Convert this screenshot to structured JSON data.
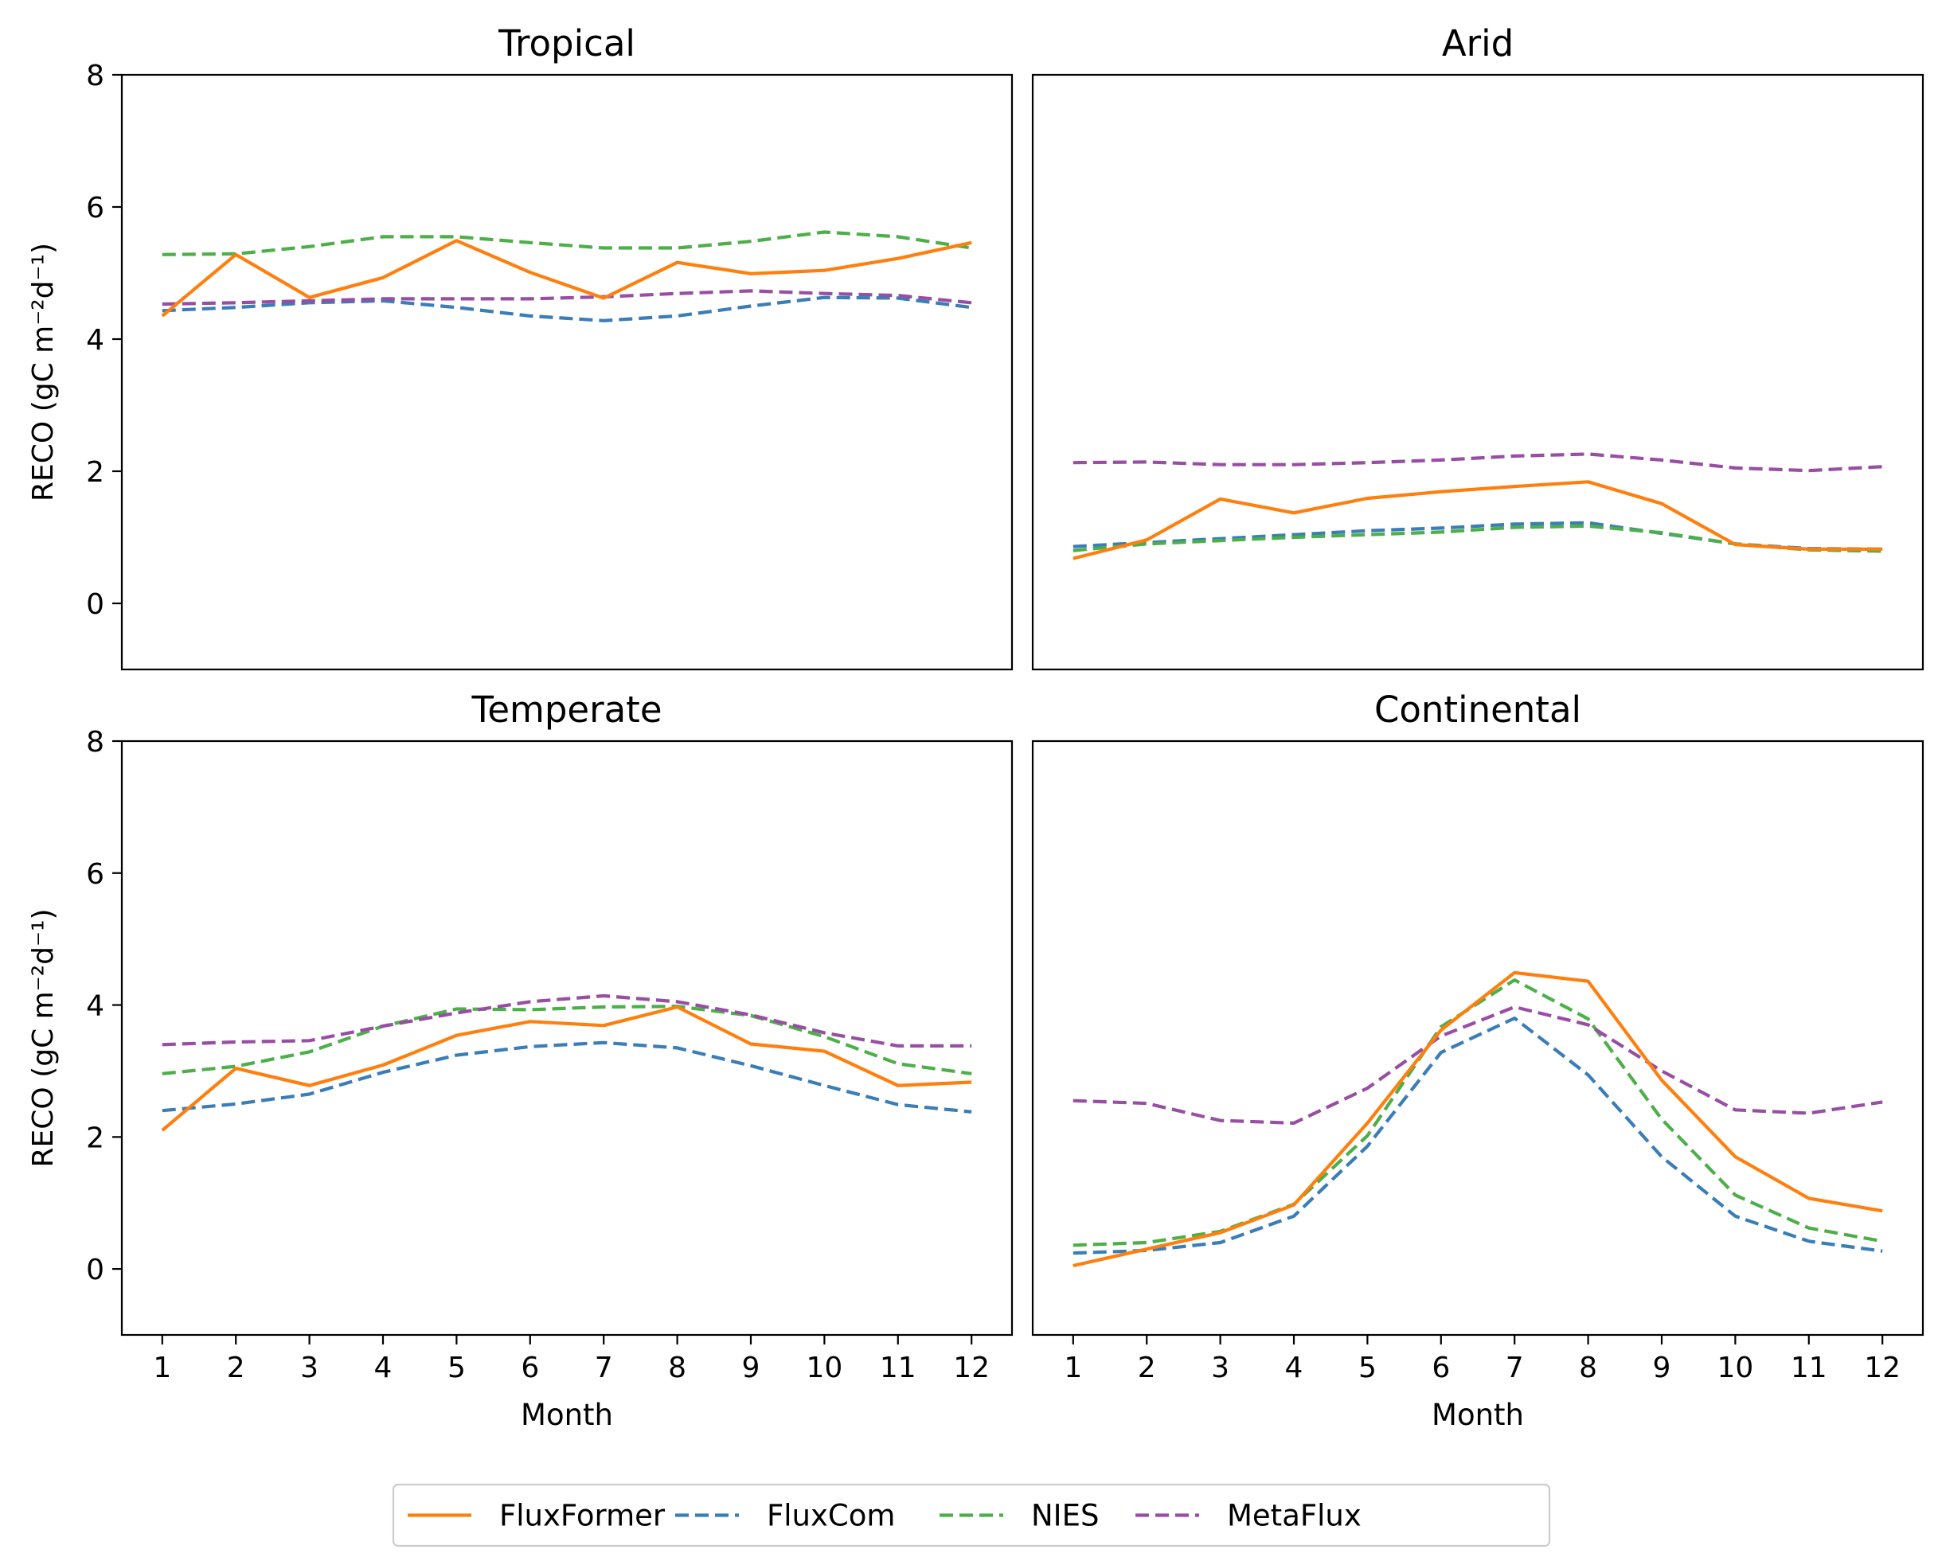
{
  "colors": {
    "FluxFormer": "#ff7f0e",
    "FluxCom": "#3a7db7",
    "NIES": "#4daf4a",
    "MetaFlux": "#984ea3"
  },
  "legend": {
    "placement": "bottom-center",
    "entries": [
      {
        "name": "FluxFormer",
        "style": "solid"
      },
      {
        "name": "FluxCom",
        "style": "dashed"
      },
      {
        "name": "NIES",
        "style": "dashed"
      },
      {
        "name": "MetaFlux",
        "style": "dashed"
      }
    ]
  },
  "chart_data": [
    {
      "type": "line",
      "title": "Tropical",
      "ylabel": "RECO (gC m⁻²d⁻¹)",
      "xlabel": "",
      "ylim": [
        -1,
        8
      ],
      "yticks": [
        "0",
        "2",
        "4",
        "6",
        "8"
      ],
      "xlim": [
        0.45,
        12.55
      ],
      "xticks": [],
      "grid": false,
      "x": [
        1,
        2,
        3,
        4,
        5,
        6,
        7,
        8,
        9,
        10,
        11,
        12
      ],
      "series": [
        {
          "name": "FluxFormer",
          "values": [
            4.35,
            5.28,
            4.63,
            4.93,
            5.49,
            5.01,
            4.62,
            5.16,
            4.99,
            5.04,
            5.22,
            5.46
          ]
        },
        {
          "name": "FluxCom",
          "values": [
            4.43,
            4.48,
            4.55,
            4.58,
            4.48,
            4.35,
            4.28,
            4.35,
            4.5,
            4.63,
            4.62,
            4.48
          ]
        },
        {
          "name": "NIES",
          "values": [
            5.28,
            5.29,
            5.4,
            5.55,
            5.55,
            5.46,
            5.38,
            5.38,
            5.48,
            5.62,
            5.55,
            5.38
          ]
        },
        {
          "name": "MetaFlux",
          "values": [
            4.53,
            4.55,
            4.58,
            4.61,
            4.61,
            4.61,
            4.64,
            4.69,
            4.73,
            4.69,
            4.66,
            4.55
          ]
        }
      ]
    },
    {
      "type": "line",
      "title": "Arid",
      "ylabel": "",
      "xlabel": "",
      "ylim": [
        -1,
        8
      ],
      "yticks": [],
      "xlim": [
        0.45,
        12.55
      ],
      "xticks": [],
      "grid": false,
      "x": [
        1,
        2,
        3,
        4,
        5,
        6,
        7,
        8,
        9,
        10,
        11,
        12
      ],
      "series": [
        {
          "name": "FluxFormer",
          "values": [
            0.68,
            0.96,
            1.58,
            1.37,
            1.59,
            1.69,
            1.77,
            1.84,
            1.51,
            0.89,
            0.82,
            0.82
          ]
        },
        {
          "name": "FluxCom",
          "values": [
            0.86,
            0.92,
            0.98,
            1.04,
            1.1,
            1.14,
            1.2,
            1.22,
            1.06,
            0.9,
            0.83,
            0.82
          ]
        },
        {
          "name": "NIES",
          "values": [
            0.8,
            0.9,
            0.95,
            1.0,
            1.04,
            1.08,
            1.15,
            1.17,
            1.07,
            0.9,
            0.81,
            0.79
          ]
        },
        {
          "name": "MetaFlux",
          "values": [
            2.13,
            2.14,
            2.1,
            2.1,
            2.13,
            2.17,
            2.23,
            2.26,
            2.17,
            2.05,
            2.01,
            2.07
          ]
        }
      ]
    },
    {
      "type": "line",
      "title": "Temperate",
      "ylabel": "RECO (gC m⁻²d⁻¹)",
      "xlabel": "Month",
      "ylim": [
        -1,
        8
      ],
      "yticks": [
        "0",
        "2",
        "4",
        "6",
        "8"
      ],
      "xlim": [
        0.45,
        12.55
      ],
      "xticks": [
        "1",
        "2",
        "3",
        "4",
        "5",
        "6",
        "7",
        "8",
        "9",
        "10",
        "11",
        "12"
      ],
      "grid": false,
      "x": [
        1,
        2,
        3,
        4,
        5,
        6,
        7,
        8,
        9,
        10,
        11,
        12
      ],
      "series": [
        {
          "name": "FluxFormer",
          "values": [
            2.1,
            3.04,
            2.78,
            3.09,
            3.54,
            3.75,
            3.69,
            3.97,
            3.41,
            3.3,
            2.78,
            2.83
          ]
        },
        {
          "name": "FluxCom",
          "values": [
            2.4,
            2.5,
            2.65,
            2.98,
            3.24,
            3.37,
            3.43,
            3.35,
            3.08,
            2.78,
            2.49,
            2.38
          ]
        },
        {
          "name": "NIES",
          "values": [
            2.96,
            3.07,
            3.29,
            3.68,
            3.94,
            3.93,
            3.97,
            3.98,
            3.84,
            3.52,
            3.11,
            2.96
          ]
        },
        {
          "name": "MetaFlux",
          "values": [
            3.4,
            3.44,
            3.46,
            3.68,
            3.88,
            4.05,
            4.14,
            4.05,
            3.85,
            3.58,
            3.38,
            3.38
          ]
        }
      ]
    },
    {
      "type": "line",
      "title": "Continental",
      "ylabel": "",
      "xlabel": "Month",
      "ylim": [
        -1,
        8
      ],
      "yticks": [],
      "xlim": [
        0.45,
        12.55
      ],
      "xticks": [
        "1",
        "2",
        "3",
        "4",
        "5",
        "6",
        "7",
        "8",
        "9",
        "10",
        "11",
        "12"
      ],
      "grid": false,
      "x": [
        1,
        2,
        3,
        4,
        5,
        6,
        7,
        8,
        9,
        10,
        11,
        12
      ],
      "series": [
        {
          "name": "FluxFormer",
          "values": [
            0.05,
            0.3,
            0.55,
            0.97,
            2.21,
            3.62,
            4.49,
            4.36,
            2.86,
            1.7,
            1.07,
            0.88
          ]
        },
        {
          "name": "FluxCom",
          "values": [
            0.24,
            0.28,
            0.4,
            0.8,
            1.86,
            3.28,
            3.8,
            2.94,
            1.7,
            0.8,
            0.42,
            0.27
          ]
        },
        {
          "name": "NIES",
          "values": [
            0.36,
            0.4,
            0.57,
            0.98,
            2.02,
            3.67,
            4.38,
            3.79,
            2.27,
            1.12,
            0.62,
            0.42
          ]
        },
        {
          "name": "MetaFlux",
          "values": [
            2.55,
            2.51,
            2.25,
            2.21,
            2.74,
            3.53,
            3.97,
            3.7,
            3.0,
            2.41,
            2.36,
            2.53
          ]
        }
      ]
    }
  ]
}
